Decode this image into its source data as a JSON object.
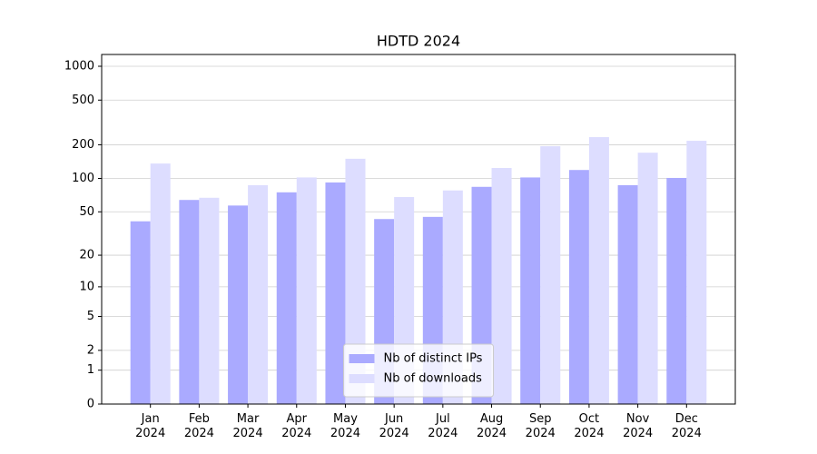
{
  "chart_data": {
    "type": "bar",
    "title": "HDTD 2024",
    "categories": [
      "Jan\n2024",
      "Feb\n2024",
      "Mar\n2024",
      "Apr\n2024",
      "May\n2024",
      "Jun\n2024",
      "Jul\n2024",
      "Aug\n2024",
      "Sep\n2024",
      "Oct\n2024",
      "Nov\n2024",
      "Dec\n2024"
    ],
    "series": [
      {
        "name": "Nb of distinct IPs",
        "color": "#aaaaff",
        "values": [
          41,
          64,
          57,
          75,
          92,
          43,
          45,
          84,
          102,
          119,
          87,
          101
        ]
      },
      {
        "name": "Nb of downloads",
        "color": "#ddddff",
        "values": [
          136,
          67,
          87,
          102,
          150,
          68,
          78,
          124,
          194,
          234,
          170,
          217
        ]
      }
    ],
    "yscale": "log1p",
    "ylim": [
      0,
      1273
    ],
    "yticks": [
      0,
      1,
      2,
      5,
      10,
      20,
      50,
      100,
      200,
      500,
      1000
    ],
    "grid": true,
    "legend": "lower center"
  }
}
